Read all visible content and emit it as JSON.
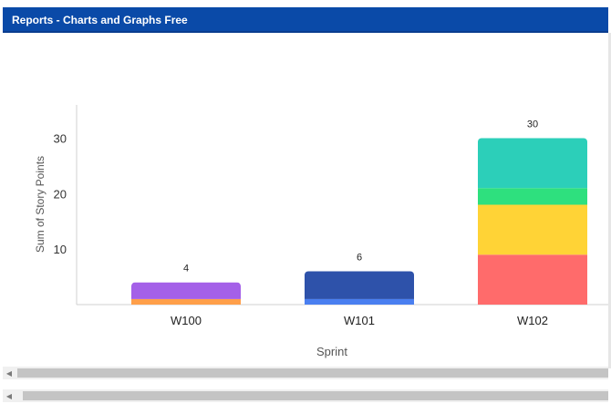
{
  "window": {
    "title": "Reports - Charts and Graphs Free"
  },
  "chart_data": {
    "type": "bar",
    "stacked": true,
    "categories": [
      "W100",
      "W101",
      "W102"
    ],
    "totals": [
      4,
      6,
      30
    ],
    "series": [
      {
        "color": "#ff6b6b",
        "values": [
          0,
          0,
          9
        ]
      },
      {
        "color": "#ffd336",
        "values": [
          0,
          0,
          9
        ]
      },
      {
        "color": "#2ee07e",
        "values": [
          0,
          0,
          3
        ]
      },
      {
        "color": "#2ccfb9",
        "values": [
          0,
          0,
          9
        ]
      },
      {
        "color": "#ff9f4a",
        "values": [
          1,
          0,
          0
        ]
      },
      {
        "color": "#a460e8",
        "values": [
          3,
          0,
          0
        ]
      },
      {
        "color": "#4a7ff0",
        "values": [
          0,
          1,
          0
        ]
      },
      {
        "color": "#2e52aa",
        "values": [
          0,
          5,
          0
        ]
      }
    ],
    "xlabel": "Sprint",
    "ylabel": "Sum of Story Points",
    "yticks": [
      10,
      20,
      30
    ],
    "ylim": [
      0,
      36
    ],
    "grid": false,
    "legend": "none"
  },
  "scrollbars": [
    {
      "icon": "scroll-left-arrow-icon"
    },
    {
      "icon": "scroll-left-arrow-icon"
    }
  ]
}
